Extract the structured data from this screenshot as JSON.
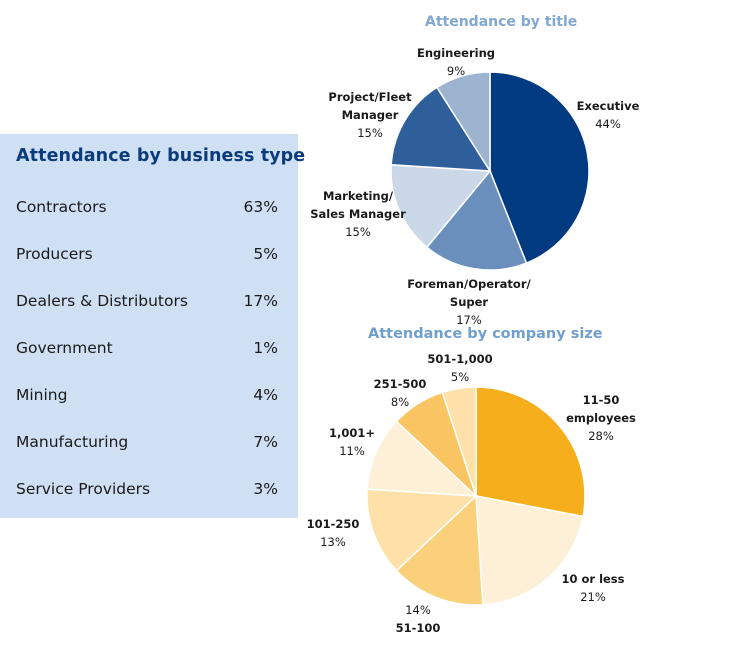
{
  "business_panel": {
    "title": "Attendance by business type",
    "rows": [
      {
        "name": "Contractors",
        "pct": "63%"
      },
      {
        "name": "Producers",
        "pct": "5%"
      },
      {
        "name": "Dealers & Distributors",
        "pct": "17%"
      },
      {
        "name": "Government",
        "pct": "1%"
      },
      {
        "name": "Mining",
        "pct": "4%"
      },
      {
        "name": "Manufacturing",
        "pct": "7%"
      },
      {
        "name": "Service Providers",
        "pct": "3%"
      }
    ]
  },
  "chart_data": [
    {
      "type": "table",
      "title": "Attendance by business type",
      "categories": [
        "Contractors",
        "Producers",
        "Dealers & Distributors",
        "Government",
        "Mining",
        "Manufacturing",
        "Service Providers"
      ],
      "values": [
        63,
        5,
        17,
        1,
        4,
        7,
        3
      ]
    },
    {
      "type": "pie",
      "title": "Attendance by title",
      "slices": [
        {
          "label": [
            "Executive"
          ],
          "pct_text": "44%",
          "value": 44,
          "color": "#003a80"
        },
        {
          "label": [
            "Foreman/Operator/",
            "Super"
          ],
          "pct_text": "17%",
          "value": 17,
          "color": "#6a8fbd"
        },
        {
          "label": [
            "Marketing/",
            "Sales Manager"
          ],
          "pct_text": "15%",
          "value": 15,
          "color": "#cbd8e7"
        },
        {
          "label": [
            "Project/Fleet",
            "Manager"
          ],
          "pct_text": "15%",
          "value": 15,
          "color": "#2f5f9a"
        },
        {
          "label": [
            "Engineering"
          ],
          "pct_text": "9%",
          "value": 9,
          "color": "#9db4d1"
        }
      ]
    },
    {
      "type": "pie",
      "title": "Attendance by company size",
      "slices": [
        {
          "label": [
            "11-50",
            "employees"
          ],
          "pct_text": "28%",
          "value": 28,
          "color": "#f7ae1c"
        },
        {
          "label": [
            "10 or less"
          ],
          "pct_text": "21%",
          "value": 21,
          "color": "#fdf0d6"
        },
        {
          "label": [
            "51-100"
          ],
          "pct_text": "14%",
          "value": 14,
          "color": "#fbd07a"
        },
        {
          "label": [
            "101-250"
          ],
          "pct_text": "13%",
          "value": 13,
          "color": "#fde1a8"
        },
        {
          "label": [
            "1,001+"
          ],
          "pct_text": "11%",
          "value": 11,
          "color": "#fdf0d6"
        },
        {
          "label": [
            "251-500"
          ],
          "pct_text": "8%",
          "value": 8,
          "color": "#f9c563"
        },
        {
          "label": [
            "501-1,000"
          ],
          "pct_text": "5%",
          "value": 5,
          "color": "#fde1a8"
        }
      ]
    }
  ]
}
